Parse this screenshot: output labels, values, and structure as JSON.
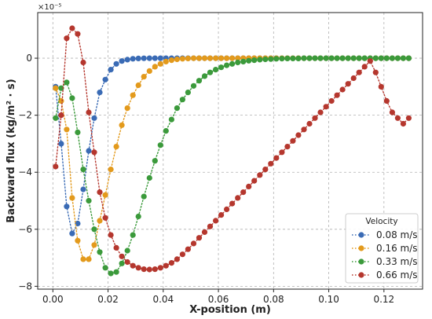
{
  "chart_data": {
    "type": "line",
    "title": "",
    "xlabel": "X-position (m)",
    "ylabel": "Backward flux (kg/m² · s)",
    "y_scale_label": "×10⁻⁵",
    "y_scale_multiplier": 1e-05,
    "xlim": [
      -0.0055,
      0.134
    ],
    "ylim": [
      -8.1,
      1.6
    ],
    "x_ticks": [
      0.0,
      0.02,
      0.04,
      0.06,
      0.08,
      0.1,
      0.12
    ],
    "x_tick_labels": [
      "0.00",
      "0.02",
      "0.04",
      "0.06",
      "0.08",
      "0.10",
      "0.12"
    ],
    "y_ticks": [
      0,
      -2,
      -4,
      -6,
      -8
    ],
    "y_tick_labels": [
      "0",
      "−2",
      "−4",
      "−6",
      "−8"
    ],
    "grid": true,
    "legend": {
      "title": "Velocity",
      "position": "lower-right"
    },
    "x": [
      0.001,
      0.003,
      0.005,
      0.007,
      0.009,
      0.011,
      0.013,
      0.015,
      0.017,
      0.019,
      0.021,
      0.023,
      0.025,
      0.027,
      0.029,
      0.031,
      0.033,
      0.035,
      0.037,
      0.039,
      0.041,
      0.043,
      0.045,
      0.047,
      0.049,
      0.051,
      0.053,
      0.055,
      0.057,
      0.059,
      0.061,
      0.063,
      0.065,
      0.067,
      0.069,
      0.071,
      0.073,
      0.075,
      0.077,
      0.079,
      0.081,
      0.083,
      0.085,
      0.087,
      0.089,
      0.091,
      0.093,
      0.095,
      0.097,
      0.099,
      0.101,
      0.103,
      0.105,
      0.107,
      0.109,
      0.111,
      0.113,
      0.115,
      0.117,
      0.119,
      0.121,
      0.123,
      0.125,
      0.127,
      0.129
    ],
    "series": [
      {
        "name": "0.08 m/s",
        "color": "#3a6bb5",
        "values": [
          -1.0,
          -3.0,
          -5.2,
          -6.15,
          -5.8,
          -4.6,
          -3.25,
          -2.1,
          -1.2,
          -0.75,
          -0.4,
          -0.2,
          -0.1,
          -0.05,
          -0.02,
          -0.01,
          -0.005,
          0,
          0,
          0,
          0,
          0,
          0,
          0,
          0,
          0,
          0,
          0,
          0,
          0,
          0,
          0,
          0,
          0,
          0,
          0,
          0,
          0,
          0,
          0,
          0,
          0,
          0,
          0,
          0,
          0,
          0,
          0,
          0,
          0,
          0,
          0,
          0,
          0,
          0,
          0,
          0,
          0,
          0,
          0,
          0,
          0,
          0,
          0,
          0
        ]
      },
      {
        "name": "0.16 m/s",
        "color": "#e39a1c",
        "values": [
          -1.05,
          -1.5,
          -2.5,
          -4.9,
          -6.4,
          -7.05,
          -7.05,
          -6.55,
          -5.7,
          -4.8,
          -3.9,
          -3.1,
          -2.35,
          -1.75,
          -1.3,
          -0.95,
          -0.65,
          -0.45,
          -0.3,
          -0.2,
          -0.12,
          -0.07,
          -0.04,
          -0.02,
          -0.01,
          0,
          0,
          0,
          0,
          0,
          0,
          0,
          0,
          0,
          0,
          0,
          0,
          0,
          0,
          0,
          0,
          0,
          0,
          0,
          0,
          0,
          0,
          0,
          0,
          0,
          0,
          0,
          0,
          0,
          0,
          0,
          0,
          0,
          0,
          0,
          0,
          0,
          0,
          0,
          0
        ]
      },
      {
        "name": "0.33 m/s",
        "color": "#3b9a3b",
        "values": [
          -2.1,
          -1.05,
          -0.85,
          -1.4,
          -2.6,
          -3.9,
          -5.0,
          -6.0,
          -6.8,
          -7.35,
          -7.55,
          -7.5,
          -7.2,
          -6.75,
          -6.2,
          -5.55,
          -4.85,
          -4.2,
          -3.6,
          -3.05,
          -2.55,
          -2.15,
          -1.75,
          -1.45,
          -1.2,
          -0.97,
          -0.79,
          -0.63,
          -0.5,
          -0.4,
          -0.32,
          -0.25,
          -0.2,
          -0.15,
          -0.12,
          -0.09,
          -0.07,
          -0.05,
          -0.04,
          -0.03,
          -0.02,
          -0.015,
          -0.01,
          -0.01,
          -0.01,
          0,
          0,
          0,
          0,
          0,
          0,
          0,
          0,
          0,
          0,
          0,
          0,
          0,
          0,
          0,
          0,
          0,
          0,
          0,
          0
        ]
      },
      {
        "name": "0.66 m/s",
        "color": "#b5372e",
        "values": [
          -3.8,
          -2.0,
          0.7,
          1.05,
          0.85,
          -0.15,
          -1.9,
          -3.3,
          -4.7,
          -5.6,
          -6.2,
          -6.65,
          -6.95,
          -7.15,
          -7.28,
          -7.35,
          -7.4,
          -7.41,
          -7.4,
          -7.35,
          -7.28,
          -7.18,
          -7.05,
          -6.88,
          -6.7,
          -6.5,
          -6.3,
          -6.1,
          -5.9,
          -5.7,
          -5.5,
          -5.3,
          -5.1,
          -4.9,
          -4.7,
          -4.5,
          -4.3,
          -4.1,
          -3.9,
          -3.7,
          -3.5,
          -3.3,
          -3.1,
          -2.9,
          -2.7,
          -2.5,
          -2.3,
          -2.1,
          -1.9,
          -1.7,
          -1.5,
          -1.3,
          -1.1,
          -0.9,
          -0.7,
          -0.5,
          -0.3,
          -0.1,
          -0.5,
          -1.0,
          -1.5,
          -1.9,
          -2.1,
          -2.3,
          -2.1
        ]
      }
    ]
  }
}
